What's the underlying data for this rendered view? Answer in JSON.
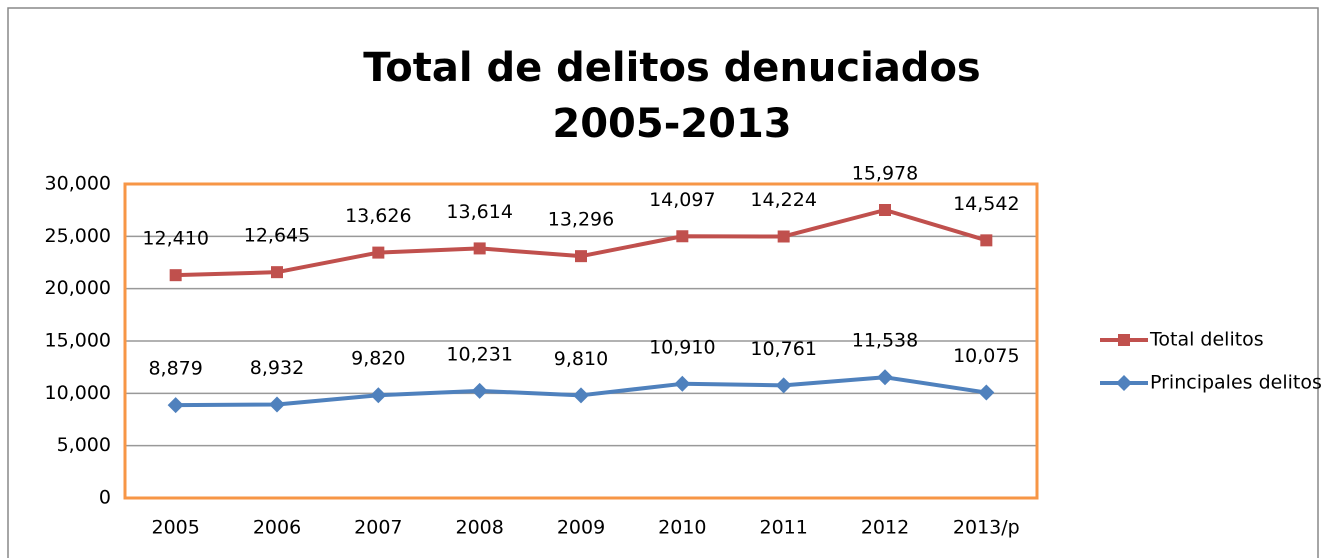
{
  "chart_data": {
    "type": "line",
    "stacked": true,
    "title": "Total de delitos denuciados",
    "subtitle": "2005-2013",
    "categories": [
      "2005",
      "2006",
      "2007",
      "2008",
      "2009",
      "2010",
      "2011",
      "2012",
      "2013/p"
    ],
    "series": [
      {
        "name": "Principales delitos",
        "color": "#4f81bd",
        "marker": "diamond",
        "values": [
          8879,
          8932,
          9820,
          10231,
          9810,
          10910,
          10761,
          11538,
          10075
        ],
        "value_labels": [
          "8,879",
          "8,932",
          "9,820",
          "10,231",
          "9,810",
          "10,910",
          "10,761",
          "11,538",
          "10,075"
        ]
      },
      {
        "name": "Total delitos",
        "color": "#c0504d",
        "marker": "square",
        "values": [
          12410,
          12645,
          13626,
          13614,
          13296,
          14097,
          14224,
          15978,
          14542
        ],
        "value_labels": [
          "12,410",
          "12,645",
          "13,626",
          "13,614",
          "13,296",
          "14,097",
          "14,224",
          "15,978",
          "14,542"
        ]
      }
    ],
    "ylim": [
      0,
      30000
    ],
    "yticks": [
      0,
      {
        "value": 5000,
        "label": "5,000"
      },
      {
        "value": 10000,
        "label": "10,000"
      },
      {
        "value": 15000,
        "label": "15,000"
      },
      {
        "value": 20000,
        "label": "20,000"
      },
      {
        "value": 25000,
        "label": "25,000"
      },
      {
        "value": 30000,
        "label": "30,000"
      }
    ],
    "grid": true,
    "legend": "right",
    "plot_border_color": "#f79646"
  }
}
